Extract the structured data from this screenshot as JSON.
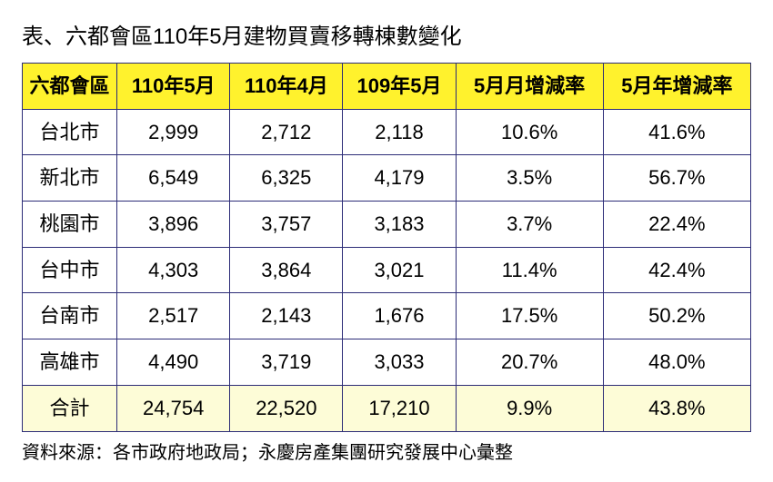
{
  "title": "表、六都會區110年5月建物買賣移轉棟數變化",
  "source": "資料來源：各市政府地政局；永慶房產集團研究發展中心彙整",
  "table": {
    "headers": {
      "city": "六都會區",
      "c1": "110年5月",
      "c2": "110年4月",
      "c3": "109年5月",
      "c4": "5月月增減率",
      "c5": "5月年增減率"
    },
    "rows": [
      {
        "city": "台北市",
        "v1": "2,999",
        "v2": "2,712",
        "v3": "2,118",
        "m": "10.6%",
        "y": "41.6%"
      },
      {
        "city": "新北市",
        "v1": "6,549",
        "v2": "6,325",
        "v3": "4,179",
        "m": "3.5%",
        "y": "56.7%"
      },
      {
        "city": "桃園市",
        "v1": "3,896",
        "v2": "3,757",
        "v3": "3,183",
        "m": "3.7%",
        "y": "22.4%"
      },
      {
        "city": "台中市",
        "v1": "4,303",
        "v2": "3,864",
        "v3": "3,021",
        "m": "11.4%",
        "y": "42.4%"
      },
      {
        "city": "台南市",
        "v1": "2,517",
        "v2": "2,143",
        "v3": "1,676",
        "m": "17.5%",
        "y": "50.2%"
      },
      {
        "city": "高雄市",
        "v1": "4,490",
        "v2": "3,719",
        "v3": "3,033",
        "m": "20.7%",
        "y": "48.0%"
      }
    ],
    "total": {
      "city": "合計",
      "v1": "24,754",
      "v2": "22,520",
      "v3": "17,210",
      "m": "9.9%",
      "y": "43.8%"
    }
  },
  "style": {
    "header_bg": "#fff22d",
    "total_bg": "#fdfcd7",
    "border_color": "#2c2c77",
    "font_size_title": 24,
    "font_size_cell": 22,
    "font_size_source": 20
  }
}
